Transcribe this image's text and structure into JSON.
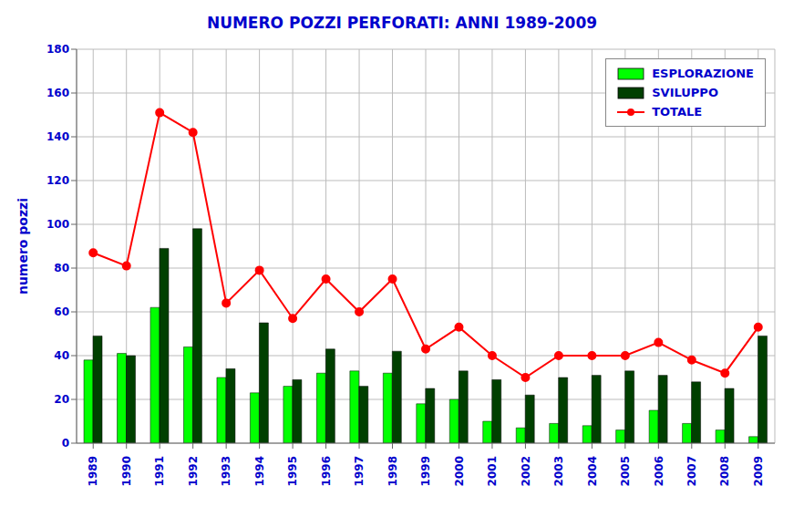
{
  "chart_data": {
    "type": "bar",
    "title": "NUMERO POZZI PERFORATI: ANNI 1989-2009",
    "ylabel": "numero pozzi",
    "categories": [
      "1989",
      "1990",
      "1991",
      "1992",
      "1993",
      "1994",
      "1995",
      "1996",
      "1997",
      "1998",
      "1999",
      "2000",
      "2001",
      "2002",
      "2003",
      "2004",
      "2005",
      "2006",
      "2007",
      "2008",
      "2009"
    ],
    "series": [
      {
        "name": "ESPLORAZIONE",
        "color": "#00FF00",
        "values": [
          38,
          41,
          62,
          44,
          30,
          23,
          26,
          32,
          33,
          32,
          18,
          20,
          10,
          7,
          9,
          8,
          6,
          15,
          9,
          6,
          3
        ]
      },
      {
        "name": "SVILUPPO",
        "color": "#004000",
        "values": [
          49,
          40,
          89,
          98,
          34,
          55,
          29,
          43,
          26,
          42,
          25,
          33,
          29,
          22,
          30,
          31,
          33,
          31,
          28,
          25,
          49
        ]
      },
      {
        "name": "TOTALE",
        "type": "line",
        "color": "#FF0000",
        "marker": "circle",
        "values": [
          87,
          81,
          151,
          142,
          64,
          79,
          57,
          75,
          60,
          75,
          43,
          53,
          40,
          30,
          40,
          40,
          40,
          46,
          38,
          32,
          53
        ]
      }
    ],
    "ylim": [
      0,
      180
    ],
    "yticks": [
      0,
      20,
      40,
      60,
      80,
      100,
      120,
      140,
      160,
      180
    ],
    "grid": true,
    "legend": "upper right"
  }
}
